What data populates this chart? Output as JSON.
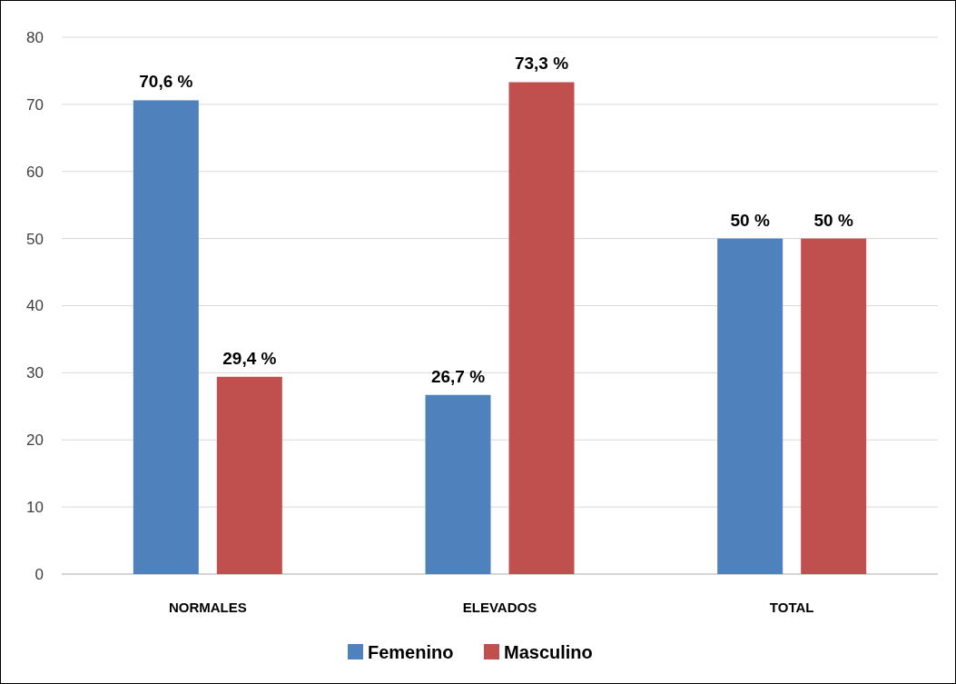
{
  "chart_data": {
    "type": "bar",
    "categories": [
      "NORMALES",
      "ELEVADOS",
      "TOTAL"
    ],
    "series": [
      {
        "name": "Femenino",
        "color": "#4f81bd",
        "values": [
          70.6,
          26.7,
          50
        ],
        "value_labels": [
          "70,6 %",
          "26,7 %",
          "50 %"
        ]
      },
      {
        "name": "Masculino",
        "color": "#c0504d",
        "values": [
          29.4,
          73.3,
          50
        ],
        "value_labels": [
          "29,4 %",
          "73,3 %",
          "50 %"
        ]
      }
    ],
    "ylim": [
      0,
      80
    ],
    "yticks": [
      0,
      10,
      20,
      30,
      40,
      50,
      60,
      70,
      80
    ],
    "grid": "y",
    "legend": "bottom"
  }
}
